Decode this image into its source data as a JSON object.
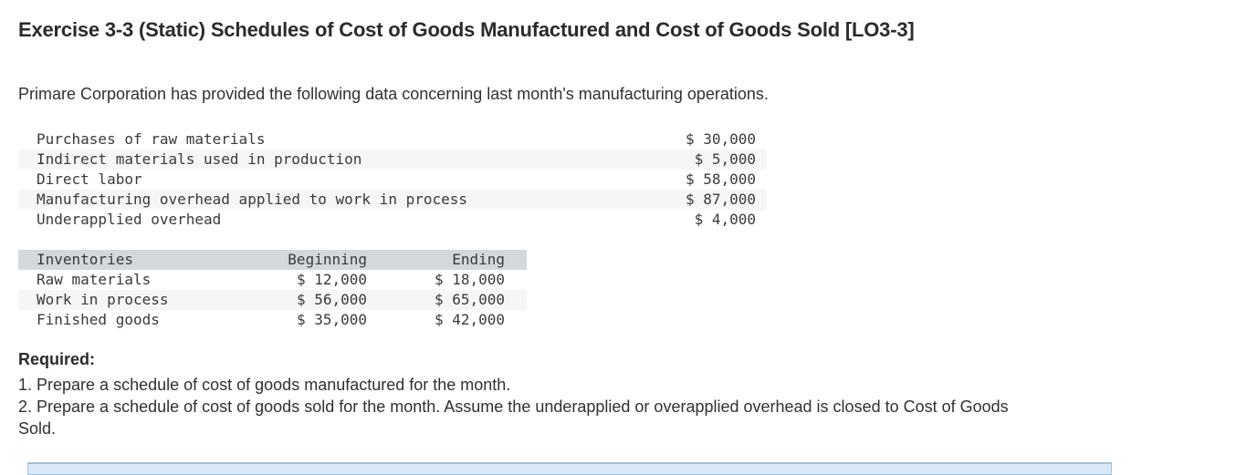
{
  "page": {
    "title": "Exercise 3-3 (Static) Schedules of Cost of Goods Manufactured and Cost of Goods Sold [LO3-3]",
    "intro": "Primare Corporation has provided the following data concerning last month's manufacturing operations."
  },
  "costs_table": {
    "rows": [
      {
        "label": "Purchases of raw materials",
        "amount": "$ 30,000"
      },
      {
        "label": "Indirect materials used in production",
        "amount": "$ 5,000"
      },
      {
        "label": "Direct labor",
        "amount": "$ 58,000"
      },
      {
        "label": "Manufacturing overhead applied to work in process",
        "amount": "$ 87,000"
      },
      {
        "label": "Underapplied overhead",
        "amount": "$ 4,000"
      }
    ]
  },
  "inventories_table": {
    "headers": {
      "col1": "Inventories",
      "col2": "Beginning",
      "col3": "Ending"
    },
    "rows": [
      {
        "label": "Raw materials",
        "beginning": "$ 12,000",
        "ending": "$ 18,000"
      },
      {
        "label": "Work in process",
        "beginning": "$ 56,000",
        "ending": "$ 65,000"
      },
      {
        "label": "Finished goods",
        "beginning": "$ 35,000",
        "ending": "$ 42,000"
      }
    ]
  },
  "required": {
    "heading": "Required:",
    "items": [
      "1. Prepare a schedule of cost of goods manufactured for the month.",
      "2. Prepare a schedule of cost of goods sold for the month. Assume the underapplied or overapplied overhead is closed to Cost of Goods Sold."
    ]
  },
  "colors": {
    "stripe": "#f6f6f7",
    "header_bg": "#d4d8dd",
    "panel_fill": "#d9e8f6",
    "panel_border": "#a2c1dd"
  }
}
